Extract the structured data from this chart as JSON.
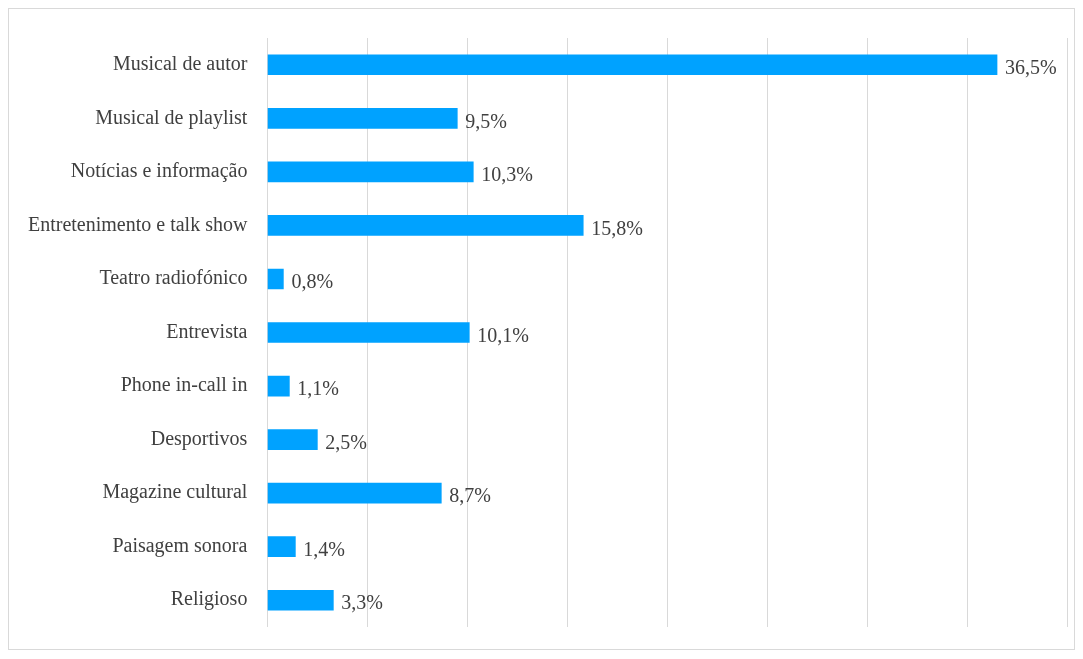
{
  "chart_data": {
    "type": "bar",
    "orientation": "horizontal",
    "categories": [
      "Musical de autor",
      "Musical de playlist",
      "Notícias e informação",
      "Entretenimento e talk show",
      "Teatro radiofónico",
      "Entrevista",
      "Phone in-call in",
      "Desportivos",
      "Magazine cultural",
      "Paisagem sonora",
      "Religioso"
    ],
    "values": [
      36.5,
      9.5,
      10.3,
      15.8,
      0.8,
      10.1,
      1.1,
      2.5,
      8.7,
      1.4,
      3.3
    ],
    "value_labels": [
      "36,5%",
      "9,5%",
      "10,3%",
      "15,8%",
      "0,8%",
      "10,1%",
      "1,1%",
      "2,5%",
      "8,7%",
      "1,4%",
      "3,3%"
    ],
    "color": "#00a2ff",
    "xlim": [
      0,
      40
    ],
    "xticks": [
      {
        "value": 0,
        "label": null
      },
      {
        "value": 5,
        "label": null
      },
      {
        "value": 10,
        "label": null
      },
      {
        "value": 15,
        "label": null
      },
      {
        "value": 20,
        "label": null
      },
      {
        "value": 25,
        "label": null
      },
      {
        "value": 30,
        "label": null
      },
      {
        "value": 35,
        "label": null
      },
      {
        "value": 40,
        "label": null
      }
    ],
    "tick_labels": "y",
    "grid": "x",
    "legend": false
  }
}
